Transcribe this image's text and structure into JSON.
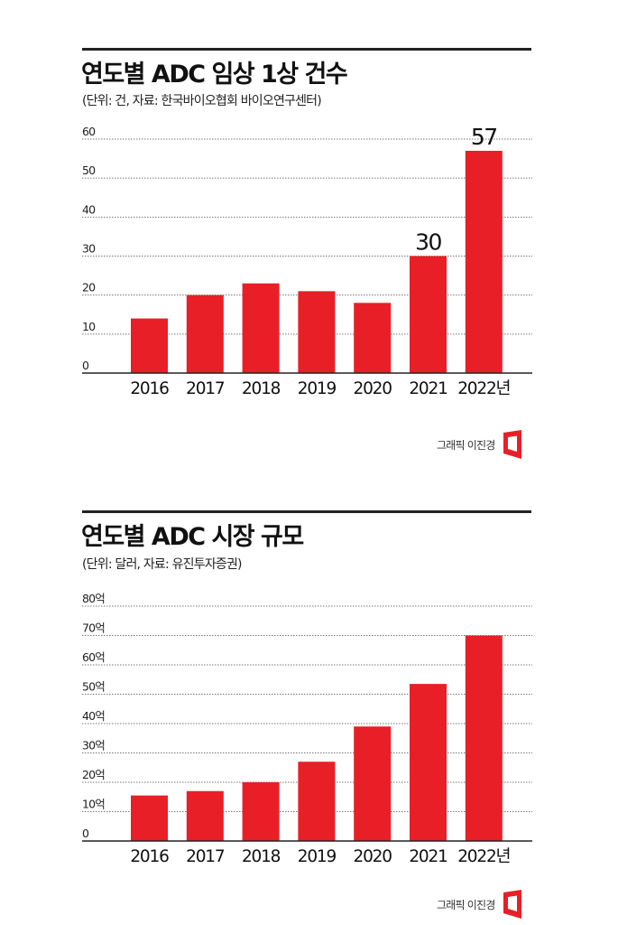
{
  "accent_color": "#e81f27",
  "chart_data": [
    {
      "type": "bar",
      "title": "연도별 ADC 임상 1상 건수",
      "subtitle": "(단위: 건, 자료: 한국바이오협회 바이오연구센터)",
      "categories": [
        "2016",
        "2017",
        "2018",
        "2019",
        "2020",
        "2021",
        "2022년"
      ],
      "values": [
        14,
        20,
        23,
        21,
        18,
        30,
        57
      ],
      "data_labels": [
        null,
        null,
        null,
        null,
        null,
        "30",
        "57"
      ],
      "yticks": [
        "0",
        "10",
        "20",
        "30",
        "40",
        "50",
        "60"
      ],
      "ytick_values": [
        0,
        10,
        20,
        30,
        40,
        50,
        60
      ],
      "ylim": [
        0,
        60
      ],
      "xlabel": "",
      "ylabel": "",
      "grid": true,
      "credit": "그래픽 이진경"
    },
    {
      "type": "bar",
      "title": "연도별 ADC 시장 규모",
      "subtitle": "(단위: 달러, 자료: 유진투자증권)",
      "categories": [
        "2016",
        "2017",
        "2018",
        "2019",
        "2020",
        "2021",
        "2022년"
      ],
      "values": [
        15.5,
        17,
        20,
        27,
        39,
        53.5,
        70
      ],
      "data_labels": [
        null,
        null,
        null,
        null,
        null,
        null,
        null
      ],
      "yticks": [
        "0",
        "10억",
        "20억",
        "30억",
        "40억",
        "50억",
        "60억",
        "70억",
        "80억"
      ],
      "ytick_values": [
        0,
        10,
        20,
        30,
        40,
        50,
        60,
        70,
        80
      ],
      "ylim": [
        0,
        80
      ],
      "xlabel": "",
      "ylabel": "",
      "grid": true,
      "credit": "그래픽 이진경"
    }
  ]
}
